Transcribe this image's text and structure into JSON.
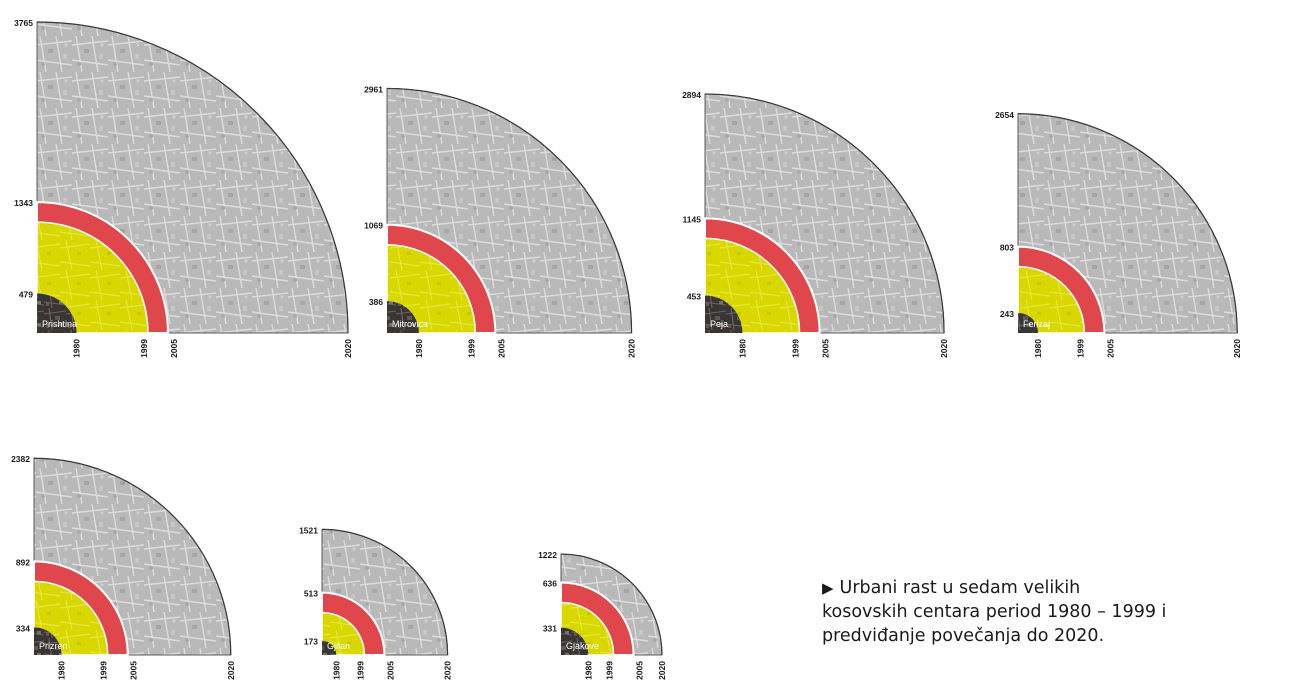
{
  "chart_data": {
    "type": "radial-quadrant",
    "year_labels": [
      "1980",
      "1999",
      "2005",
      "2020"
    ],
    "legend_colors": {
      "1980": "#3b3838",
      "1999": "#d8d800",
      "2005": "#e0474c",
      "2020": "#b9b9b9"
    },
    "cities": [
      {
        "name": "Prishtina",
        "r1980": 479,
        "r1999": 1343,
        "r2020": 3765
      },
      {
        "name": "Mitrovica",
        "r1980": 386,
        "r1999": 1069,
        "r2020": 2961
      },
      {
        "name": "Peja",
        "r1980": 453,
        "r1999": 1145,
        "r2020": 2894
      },
      {
        "name": "Ferizaj",
        "r1980": 243,
        "r1999": 803,
        "r2020": 2654
      },
      {
        "name": "Prizren",
        "r1980": 334,
        "r1999": 892,
        "r2020": 2382
      },
      {
        "name": "Gjilan",
        "r1980": 173,
        "r1999": 513,
        "r2020": 1521
      },
      {
        "name": "Gjakove",
        "r1980": 331,
        "r1999": 636,
        "r2020": 1222
      }
    ]
  },
  "caption": {
    "marker": "▶",
    "lines": [
      "Urbani rast u sedam velikih",
      "kosovskih centara period  1980 – 1999 i",
      "predviđanje povečanja  do 2020."
    ]
  }
}
